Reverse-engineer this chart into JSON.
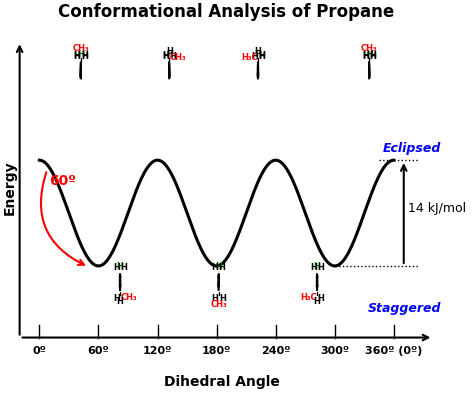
{
  "title": "Conformational Analysis of Propane",
  "xlabel": "Dihedral Angle",
  "ylabel": "Energy",
  "xtick_labels": [
    "0º",
    "60º",
    "120º",
    "180º",
    "240º",
    "300º",
    "360º (0º)"
  ],
  "curve_color": "black",
  "background_color": "white",
  "energy_barrier": "14 kJ/mol",
  "angle_label": "60º",
  "eclipsed_label": "Eclipsed",
  "staggered_label": "Staggered",
  "title_fontsize": 12,
  "label_fontsize": 10,
  "tick_fontsize": 8,
  "annotation_fontsize": 9,
  "amplitude": 6.5,
  "baseline": 3.2
}
